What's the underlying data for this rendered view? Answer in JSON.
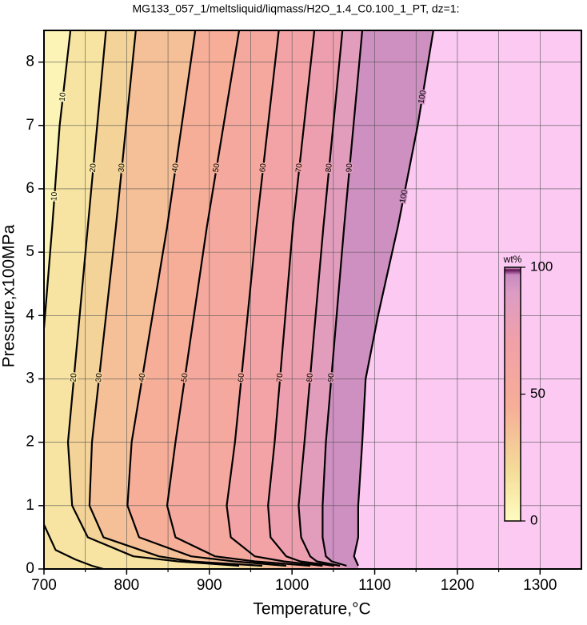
{
  "chart_data": {
    "type": "contour",
    "title": "MG133_057_1/meltsliquid/liqmass/H2O_1.4_C0.100_1_PT, dz=1:",
    "x_label": "Temperature,°C",
    "y_label": "Pressure,x100MPa",
    "xlim": [
      700,
      1350
    ],
    "ylim": [
      0,
      8.5
    ],
    "xticks": [
      700,
      800,
      900,
      1000,
      1100,
      1200,
      1300
    ],
    "xminor": [
      750,
      850,
      950,
      1050,
      1150,
      1250
    ],
    "yticks": [
      0,
      1,
      2,
      3,
      4,
      5,
      6,
      7,
      8
    ],
    "grid": true,
    "colormap": [
      [
        0,
        "#fffcc0"
      ],
      [
        20,
        "#f4dc98"
      ],
      [
        45,
        "#f6ae98"
      ],
      [
        70,
        "#f2a0a8"
      ],
      [
        90,
        "#dc9cc4"
      ],
      [
        97,
        "#c88ac0"
      ],
      [
        99,
        "#601050"
      ],
      [
        100,
        "#fbc9f1"
      ]
    ],
    "colorbar": {
      "label": "wt%",
      "lim": [
        0,
        100
      ],
      "ticks": [
        0,
        50,
        100
      ]
    },
    "contours": [
      {
        "level": 10,
        "x": [
          772,
          758,
          738,
          714,
          700,
          null,
          700,
          710,
          719,
          732
        ],
        "y": [
          0,
          0.05,
          0.15,
          0.3,
          0.7,
          null,
          3.8,
          5.4,
          7,
          8.5
        ]
      },
      {
        "level": 20,
        "x": [
          936,
          862,
          808,
          753,
          734,
          729,
          753,
          775
        ],
        "y": [
          0.05,
          0.12,
          0.2,
          0.5,
          1,
          2,
          5.4,
          8.5
        ]
      },
      {
        "level": 30,
        "x": [
          964,
          878,
          839,
          772,
          755,
          758,
          787,
          811
        ],
        "y": [
          0.05,
          0.12,
          0.2,
          0.5,
          1,
          2,
          5.4,
          8.5
        ]
      },
      {
        "level": 40,
        "x": [
          993,
          930,
          878,
          815,
          801,
          806,
          849,
          883
        ],
        "y": [
          0.05,
          0.12,
          0.2,
          0.5,
          1,
          2,
          5.4,
          8.5
        ]
      },
      {
        "level": 50,
        "x": [
          1022,
          955,
          907,
          859,
          849,
          859,
          897,
          936
        ],
        "y": [
          0.05,
          0.12,
          0.2,
          0.5,
          1,
          2,
          5.4,
          8.5
        ]
      },
      {
        "level": 60,
        "x": [
          1037,
          990,
          955,
          926,
          921,
          931,
          957,
          984
        ],
        "y": [
          0.05,
          0.12,
          0.2,
          0.5,
          1,
          2,
          5.4,
          8.5
        ]
      },
      {
        "level": 70,
        "x": [
          1051,
          1010,
          993,
          974,
          971,
          979,
          1001,
          1027
        ],
        "y": [
          0.05,
          0.12,
          0.2,
          0.5,
          1,
          2,
          5.4,
          8.5
        ]
      },
      {
        "level": 80,
        "x": [
          1058,
          1030,
          1022,
          1011,
          1008,
          1015,
          1038,
          1061
        ],
        "y": [
          0.05,
          0.12,
          0.2,
          0.5,
          1,
          2,
          5.4,
          8.5
        ]
      },
      {
        "level": 90,
        "x": [
          1066,
          1048,
          1041,
          1037,
          1037,
          1041,
          1063,
          1085
        ],
        "y": [
          0.05,
          0.12,
          0.2,
          0.5,
          1,
          2,
          5.4,
          8.5
        ]
      },
      {
        "level": 100,
        "x": [
          1080,
          1075,
          1080,
          1080,
          1085,
          1089,
          1104,
          1128,
          1152,
          1171
        ],
        "y": [
          0.05,
          0.2,
          0.5,
          1,
          2,
          3,
          4,
          5.4,
          7,
          8.5
        ]
      }
    ]
  }
}
